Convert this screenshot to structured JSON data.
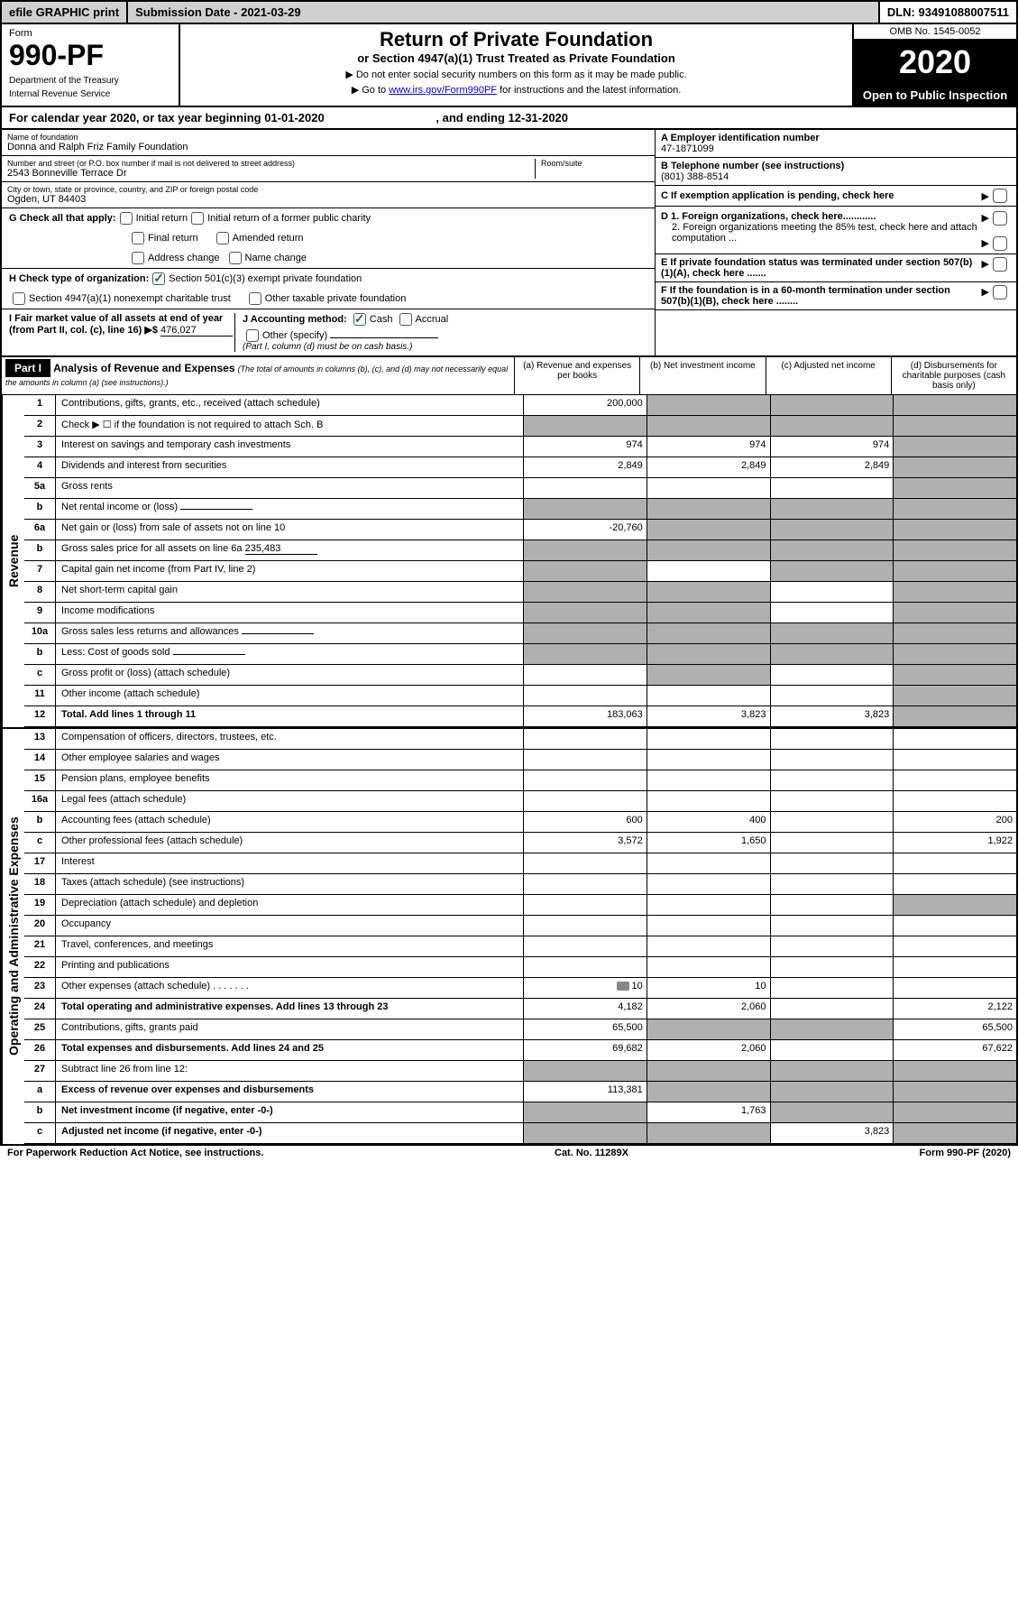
{
  "topbar": {
    "efile": "efile GRAPHIC print",
    "submission": "Submission Date - 2021-03-29",
    "dln": "DLN: 93491088007511"
  },
  "header": {
    "form_label": "Form",
    "form_number": "990-PF",
    "dept": "Department of the Treasury",
    "irs": "Internal Revenue Service",
    "title": "Return of Private Foundation",
    "subtitle": "or Section 4947(a)(1) Trust Treated as Private Foundation",
    "instr1": "▶ Do not enter social security numbers on this form as it may be made public.",
    "instr2": "▶ Go to ",
    "link": "www.irs.gov/Form990PF",
    "instr3": " for instructions and the latest information.",
    "omb": "OMB No. 1545-0052",
    "year": "2020",
    "open": "Open to Public Inspection"
  },
  "calendar": {
    "text_a": "For calendar year 2020, or tax year beginning 01-01-2020",
    "text_b": ", and ending 12-31-2020"
  },
  "info": {
    "name_label": "Name of foundation",
    "name": "Donna and Ralph Friz Family Foundation",
    "address_label": "Number and street (or P.O. box number if mail is not delivered to street address)",
    "room_label": "Room/suite",
    "address": "2543 Bonneville Terrace Dr",
    "city_label": "City or town, state or province, country, and ZIP or foreign postal code",
    "city": "Ogden, UT  84403",
    "ein_label": "A Employer identification number",
    "ein": "47-1871099",
    "tel_label": "B Telephone number (see instructions)",
    "tel": "(801) 388-8514",
    "c_label": "C If exemption application is pending, check here",
    "d1": "D 1. Foreign organizations, check here............",
    "d2": "2. Foreign organizations meeting the 85% test, check here and attach computation ...",
    "e_label": "E If private foundation status was terminated under section 507(b)(1)(A), check here .......",
    "f_label": "F If the foundation is in a 60-month termination under section 507(b)(1)(B), check here ........"
  },
  "checks": {
    "g_label": "G Check all that apply:",
    "initial": "Initial return",
    "initial_former": "Initial return of a former public charity",
    "final": "Final return",
    "amended": "Amended return",
    "address_change": "Address change",
    "name_change": "Name change",
    "h_label": "H Check type of organization:",
    "sec501": "Section 501(c)(3) exempt private foundation",
    "sec4947": "Section 4947(a)(1) nonexempt charitable trust",
    "other_taxable": "Other taxable private foundation",
    "i_label": "I Fair market value of all assets at end of year (from Part II, col. (c), line 16) ▶$",
    "i_value": "476,027",
    "j_label": "J Accounting method:",
    "cash": "Cash",
    "accrual": "Accrual",
    "other_specify": "Other (specify)",
    "j_note": "(Part I, column (d) must be on cash basis.)"
  },
  "part1": {
    "label": "Part I",
    "title": "Analysis of Revenue and Expenses",
    "note": "(The total of amounts in columns (b), (c), and (d) may not necessarily equal the amounts in column (a) (see instructions).)",
    "col_a": "(a) Revenue and expenses per books",
    "col_b": "(b) Net investment income",
    "col_c": "(c) Adjusted net income",
    "col_d": "(d) Disbursements for charitable purposes (cash basis only)"
  },
  "revenue_label": "Revenue",
  "expense_label": "Operating and Administrative Expenses",
  "rows": [
    {
      "num": "1",
      "desc": "Contributions, gifts, grants, etc., received (attach schedule)",
      "a": "200,000",
      "b": "",
      "c": "",
      "d": "",
      "shade_b": true,
      "shade_c": true,
      "shade_d": true
    },
    {
      "num": "2",
      "desc": "Check ▶ ☐ if the foundation is not required to attach Sch. B",
      "a": "",
      "b": "",
      "c": "",
      "d": "",
      "shade_a": true,
      "shade_b": true,
      "shade_c": true,
      "shade_d": true,
      "has_check": true
    },
    {
      "num": "3",
      "desc": "Interest on savings and temporary cash investments",
      "a": "974",
      "b": "974",
      "c": "974",
      "d": "",
      "shade_d": true
    },
    {
      "num": "4",
      "desc": "Dividends and interest from securities",
      "a": "2,849",
      "b": "2,849",
      "c": "2,849",
      "d": "",
      "shade_d": true
    },
    {
      "num": "5a",
      "desc": "Gross rents",
      "a": "",
      "b": "",
      "c": "",
      "d": "",
      "shade_d": true
    },
    {
      "num": "b",
      "desc": "Net rental income or (loss)",
      "a": "",
      "b": "",
      "c": "",
      "d": "",
      "shade_a": true,
      "shade_b": true,
      "shade_c": true,
      "shade_d": true,
      "has_field": true
    },
    {
      "num": "6a",
      "desc": "Net gain or (loss) from sale of assets not on line 10",
      "a": "-20,760",
      "b": "",
      "c": "",
      "d": "",
      "shade_b": true,
      "shade_c": true,
      "shade_d": true
    },
    {
      "num": "b",
      "desc": "Gross sales price for all assets on line 6a",
      "a": "",
      "b": "",
      "c": "",
      "d": "",
      "shade_a": true,
      "shade_b": true,
      "shade_c": true,
      "shade_d": true,
      "has_field": true,
      "field_value": "235,483"
    },
    {
      "num": "7",
      "desc": "Capital gain net income (from Part IV, line 2)",
      "a": "",
      "b": "",
      "c": "",
      "d": "",
      "shade_a": true,
      "shade_c": true,
      "shade_d": true
    },
    {
      "num": "8",
      "desc": "Net short-term capital gain",
      "a": "",
      "b": "",
      "c": "",
      "d": "",
      "shade_a": true,
      "shade_b": true,
      "shade_d": true
    },
    {
      "num": "9",
      "desc": "Income modifications",
      "a": "",
      "b": "",
      "c": "",
      "d": "",
      "shade_a": true,
      "shade_b": true,
      "shade_d": true
    },
    {
      "num": "10a",
      "desc": "Gross sales less returns and allowances",
      "a": "",
      "b": "",
      "c": "",
      "d": "",
      "shade_a": true,
      "shade_b": true,
      "shade_c": true,
      "shade_d": true,
      "has_field": true
    },
    {
      "num": "b",
      "desc": "Less: Cost of goods sold",
      "a": "",
      "b": "",
      "c": "",
      "d": "",
      "shade_a": true,
      "shade_b": true,
      "shade_c": true,
      "shade_d": true,
      "has_field": true
    },
    {
      "num": "c",
      "desc": "Gross profit or (loss) (attach schedule)",
      "a": "",
      "b": "",
      "c": "",
      "d": "",
      "shade_b": true,
      "shade_d": true
    },
    {
      "num": "11",
      "desc": "Other income (attach schedule)",
      "a": "",
      "b": "",
      "c": "",
      "d": "",
      "shade_d": true
    },
    {
      "num": "12",
      "desc": "Total. Add lines 1 through 11",
      "a": "183,063",
      "b": "3,823",
      "c": "3,823",
      "d": "",
      "bold": true,
      "shade_d": true
    }
  ],
  "exp_rows": [
    {
      "num": "13",
      "desc": "Compensation of officers, directors, trustees, etc.",
      "a": "",
      "b": "",
      "c": "",
      "d": ""
    },
    {
      "num": "14",
      "desc": "Other employee salaries and wages",
      "a": "",
      "b": "",
      "c": "",
      "d": ""
    },
    {
      "num": "15",
      "desc": "Pension plans, employee benefits",
      "a": "",
      "b": "",
      "c": "",
      "d": ""
    },
    {
      "num": "16a",
      "desc": "Legal fees (attach schedule)",
      "a": "",
      "b": "",
      "c": "",
      "d": ""
    },
    {
      "num": "b",
      "desc": "Accounting fees (attach schedule)",
      "a": "600",
      "b": "400",
      "c": "",
      "d": "200"
    },
    {
      "num": "c",
      "desc": "Other professional fees (attach schedule)",
      "a": "3,572",
      "b": "1,650",
      "c": "",
      "d": "1,922"
    },
    {
      "num": "17",
      "desc": "Interest",
      "a": "",
      "b": "",
      "c": "",
      "d": ""
    },
    {
      "num": "18",
      "desc": "Taxes (attach schedule) (see instructions)",
      "a": "",
      "b": "",
      "c": "",
      "d": ""
    },
    {
      "num": "19",
      "desc": "Depreciation (attach schedule) and depletion",
      "a": "",
      "b": "",
      "c": "",
      "d": "",
      "shade_d": true
    },
    {
      "num": "20",
      "desc": "Occupancy",
      "a": "",
      "b": "",
      "c": "",
      "d": ""
    },
    {
      "num": "21",
      "desc": "Travel, conferences, and meetings",
      "a": "",
      "b": "",
      "c": "",
      "d": ""
    },
    {
      "num": "22",
      "desc": "Printing and publications",
      "a": "",
      "b": "",
      "c": "",
      "d": ""
    },
    {
      "num": "23",
      "desc": "Other expenses (attach schedule)",
      "a": "10",
      "b": "10",
      "c": "",
      "d": "",
      "has_attach": true
    },
    {
      "num": "24",
      "desc": "Total operating and administrative expenses. Add lines 13 through 23",
      "a": "4,182",
      "b": "2,060",
      "c": "",
      "d": "2,122",
      "bold": true
    },
    {
      "num": "25",
      "desc": "Contributions, gifts, grants paid",
      "a": "65,500",
      "b": "",
      "c": "",
      "d": "65,500",
      "shade_b": true,
      "shade_c": true
    },
    {
      "num": "26",
      "desc": "Total expenses and disbursements. Add lines 24 and 25",
      "a": "69,682",
      "b": "2,060",
      "c": "",
      "d": "67,622",
      "bold": true
    },
    {
      "num": "27",
      "desc": "Subtract line 26 from line 12:",
      "a": "",
      "b": "",
      "c": "",
      "d": "",
      "shade_a": true,
      "shade_b": true,
      "shade_c": true,
      "shade_d": true
    },
    {
      "num": "a",
      "desc": "Excess of revenue over expenses and disbursements",
      "a": "113,381",
      "b": "",
      "c": "",
      "d": "",
      "bold": true,
      "shade_b": true,
      "shade_c": true,
      "shade_d": true
    },
    {
      "num": "b",
      "desc": "Net investment income (if negative, enter -0-)",
      "a": "",
      "b": "1,763",
      "c": "",
      "d": "",
      "bold": true,
      "shade_a": true,
      "shade_c": true,
      "shade_d": true
    },
    {
      "num": "c",
      "desc": "Adjusted net income (if negative, enter -0-)",
      "a": "",
      "b": "",
      "c": "3,823",
      "d": "",
      "bold": true,
      "shade_a": true,
      "shade_b": true,
      "shade_d": true
    }
  ],
  "footer": {
    "left": "For Paperwork Reduction Act Notice, see instructions.",
    "center": "Cat. No. 11289X",
    "right": "Form 990-PF (2020)"
  }
}
